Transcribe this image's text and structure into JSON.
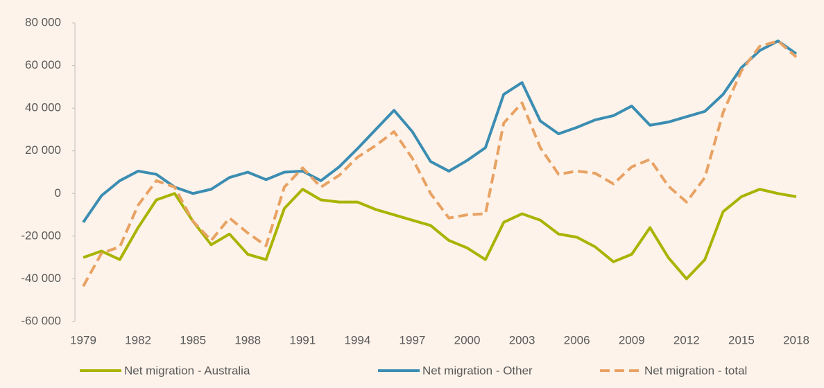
{
  "chart_data": {
    "type": "line",
    "x": [
      1979,
      1980,
      1981,
      1982,
      1983,
      1984,
      1985,
      1986,
      1987,
      1988,
      1989,
      1990,
      1991,
      1992,
      1993,
      1994,
      1995,
      1996,
      1997,
      1998,
      1999,
      2000,
      2001,
      2002,
      2003,
      2004,
      2005,
      2006,
      2007,
      2008,
      2009,
      2010,
      2011,
      2012,
      2013,
      2014,
      2015,
      2016,
      2017,
      2018
    ],
    "xlim": [
      1979,
      2018
    ],
    "xticks": [
      1979,
      1982,
      1985,
      1988,
      1991,
      1994,
      1997,
      2000,
      2003,
      2006,
      2009,
      2012,
      2015,
      2018
    ],
    "ylim": [
      -60000,
      80000
    ],
    "yticks": [
      {
        "value": -60000,
        "label": "-60 000"
      },
      {
        "value": -40000,
        "label": "-40 000"
      },
      {
        "value": -20000,
        "label": "-20 000"
      },
      0,
      {
        "value": 20000,
        "label": "20 000"
      },
      {
        "value": 40000,
        "label": "40 000"
      },
      {
        "value": 60000,
        "label": "60 000"
      },
      {
        "value": 80000,
        "label": "80 000"
      }
    ],
    "grid": false,
    "legend": "bottom",
    "series": [
      {
        "name": "Net migration - Australia",
        "color": "#a9b300",
        "dash": false,
        "values": [
          -30000,
          -27000,
          -31000,
          -16000,
          -3000,
          0,
          -13000,
          -24000,
          -19000,
          -28500,
          -31000,
          -7000,
          2000,
          -3000,
          -4000,
          -4000,
          -7500,
          -10000,
          -12500,
          -15000,
          -22000,
          -25500,
          -31000,
          -13500,
          -9500,
          -12500,
          -19000,
          -20500,
          -25000,
          -32000,
          -28500,
          -16000,
          -30000,
          -40000,
          -31000,
          -8500,
          -1500,
          2000,
          0,
          -1500
        ]
      },
      {
        "name": "Net migration - Other",
        "color": "#3b8db2",
        "dash": false,
        "values": [
          -13500,
          -1000,
          6000,
          10500,
          9000,
          3000,
          0,
          2000,
          7500,
          10000,
          6500,
          10000,
          10500,
          6000,
          12500,
          21000,
          30000,
          39000,
          29000,
          15000,
          10500,
          15500,
          21500,
          46500,
          52000,
          34000,
          28000,
          31000,
          34500,
          36500,
          41000,
          32000,
          33500,
          36000,
          38500,
          46500,
          59000,
          67000,
          71500,
          65500
        ]
      },
      {
        "name": "Net migration - total",
        "color": "#e8a263",
        "dash": true,
        "values": [
          -43500,
          -28000,
          -25000,
          -5500,
          6000,
          3000,
          -13000,
          -22000,
          -11500,
          -18500,
          -24500,
          3000,
          12000,
          3000,
          8500,
          17000,
          22500,
          29000,
          16500,
          0,
          -11500,
          -10000,
          -9500,
          33000,
          42500,
          21500,
          9000,
          10500,
          9500,
          4500,
          12500,
          16000,
          3500,
          -4000,
          7500,
          38000,
          57500,
          69000,
          71500,
          64000
        ]
      }
    ]
  }
}
